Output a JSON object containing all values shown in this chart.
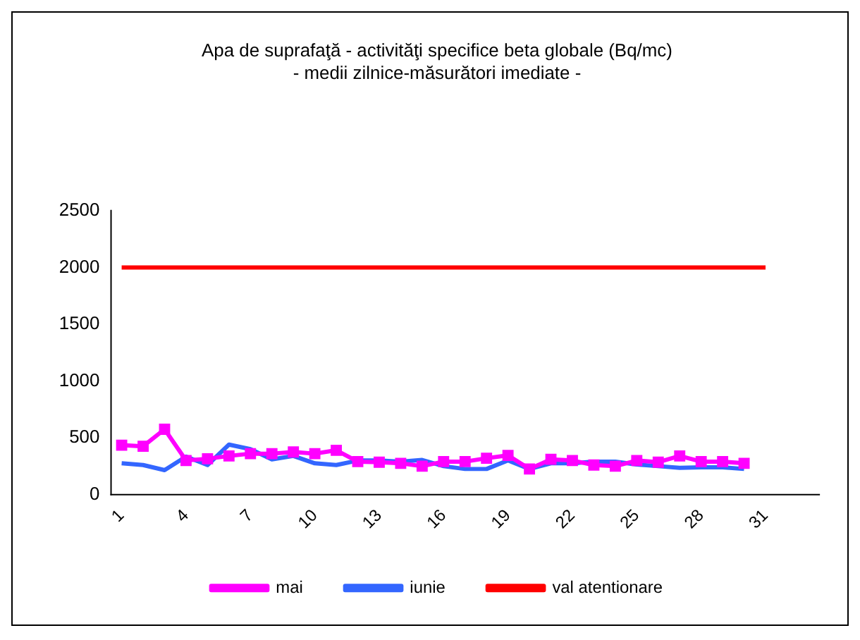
{
  "chart_data": {
    "type": "line",
    "title": [
      "Apa de suprafaţă - activităţi specifice beta globale (Bq/mc)",
      "- medii zilnice-măsurători imediate -"
    ],
    "categories": [
      "1",
      null,
      null,
      "4",
      null,
      null,
      "7",
      null,
      null,
      "10",
      null,
      null,
      "13",
      null,
      null,
      "16",
      null,
      null,
      "19",
      null,
      null,
      "22",
      null,
      null,
      "25",
      null,
      null,
      "28",
      null,
      null,
      "31",
      null,
      null
    ],
    "series": [
      {
        "name": "mai",
        "color": "#ff00ff",
        "marker": "square",
        "values": [
          435,
          425,
          575,
          300,
          315,
          340,
          360,
          360,
          375,
          360,
          390,
          290,
          285,
          275,
          250,
          290,
          290,
          320,
          345,
          225,
          310,
          300,
          260,
          250,
          300,
          285,
          340,
          290,
          290,
          275,
          null,
          null,
          null
        ]
      },
      {
        "name": "iunie",
        "color": "#3366ff",
        "marker": "none",
        "values": [
          275,
          260,
          215,
          335,
          260,
          440,
          400,
          310,
          340,
          275,
          260,
          300,
          300,
          290,
          305,
          250,
          225,
          225,
          300,
          225,
          275,
          275,
          290,
          290,
          265,
          250,
          235,
          240,
          240,
          225,
          null,
          null,
          null
        ]
      },
      {
        "name": "val atentionare",
        "color": "#ff0000",
        "marker": "none",
        "values": [
          2000,
          2000,
          2000,
          2000,
          2000,
          2000,
          2000,
          2000,
          2000,
          2000,
          2000,
          2000,
          2000,
          2000,
          2000,
          2000,
          2000,
          2000,
          2000,
          2000,
          2000,
          2000,
          2000,
          2000,
          2000,
          2000,
          2000,
          2000,
          2000,
          2000,
          2000,
          null,
          null
        ]
      }
    ],
    "ylim": [
      0,
      2500
    ],
    "yticks": [
      0,
      500,
      1000,
      1500,
      2000,
      2500
    ],
    "grid": false,
    "legend": "bottom"
  }
}
